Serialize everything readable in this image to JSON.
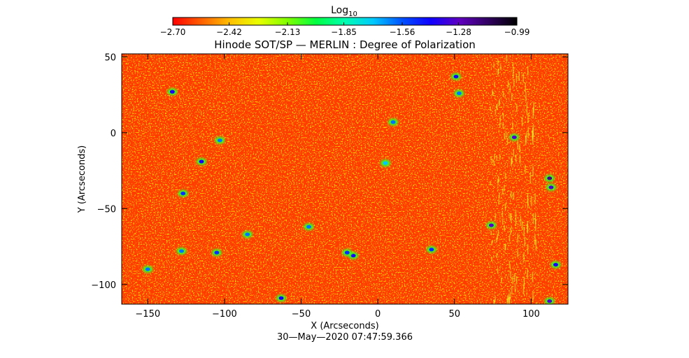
{
  "chart_data": {
    "type": "heatmap",
    "title": "Hinode SOT/SP — MERLIN : Degree of Polarization",
    "xlabel": "X (Arcseconds)",
    "ylabel": "Y (Arcseconds)",
    "timestamp": "30—May—2020 07:47:59.366",
    "xlim": [
      -167,
      124
    ],
    "ylim": [
      -113,
      52
    ],
    "x_ticks": [
      -150,
      -100,
      -50,
      0,
      50,
      100
    ],
    "x_tick_labels": [
      "−150",
      "−100",
      "−50",
      "0",
      "50",
      "100"
    ],
    "y_ticks": [
      50,
      0,
      -50,
      -100
    ],
    "y_tick_labels": [
      "50",
      "0",
      "−50",
      "−100"
    ],
    "colorbar": {
      "label_main": "Log",
      "label_sub": "10",
      "min": -2.7,
      "max": -0.99,
      "tick_values": [
        -2.7,
        -2.42,
        -2.13,
        -1.85,
        -1.56,
        -1.28,
        -0.99
      ],
      "tick_labels": [
        "−2.70",
        "−2.42",
        "−2.13",
        "−1.85",
        "−1.56",
        "−1.28",
        "−0.99"
      ],
      "colormap": [
        "#ff0000",
        "#ff6000",
        "#ffc000",
        "#e8ff00",
        "#80ff00",
        "#00ff40",
        "#00ffb0",
        "#00c8ff",
        "#0050ff",
        "#1000ff",
        "#6000c0",
        "#300060",
        "#000000"
      ]
    },
    "field": {
      "background_value": -2.62,
      "background_color": "#ff3c00",
      "bright_band": {
        "x_center": 88,
        "x_width": 30
      },
      "plage_features": [
        {
          "x": 89,
          "y": -3,
          "value": -1.3
        },
        {
          "x": 74,
          "y": -61,
          "value": -1.3
        },
        {
          "x": 112,
          "y": -30,
          "value": -1.2
        },
        {
          "x": 113,
          "y": -36,
          "value": -1.3
        },
        {
          "x": 116,
          "y": -87,
          "value": -1.4
        },
        {
          "x": 112,
          "y": -111,
          "value": -1.3
        },
        {
          "x": -16,
          "y": -81,
          "value": -1.4
        },
        {
          "x": -20,
          "y": -79,
          "value": -1.5
        },
        {
          "x": 51,
          "y": 37,
          "value": -1.4
        },
        {
          "x": 53,
          "y": 26,
          "value": -1.6
        },
        {
          "x": -134,
          "y": 27,
          "value": -1.4
        },
        {
          "x": -115,
          "y": -19,
          "value": -1.4
        },
        {
          "x": -127,
          "y": -40,
          "value": -1.5
        },
        {
          "x": -128,
          "y": -78,
          "value": -1.6
        },
        {
          "x": -105,
          "y": -79,
          "value": -1.5
        },
        {
          "x": -63,
          "y": -109,
          "value": -1.4
        },
        {
          "x": 10,
          "y": 7,
          "value": -1.6
        },
        {
          "x": 35,
          "y": -77,
          "value": -1.5
        },
        {
          "x": -103,
          "y": -5,
          "value": -1.6
        },
        {
          "x": -150,
          "y": -90,
          "value": -1.6
        },
        {
          "x": -85,
          "y": -67,
          "value": -1.6
        },
        {
          "x": 5,
          "y": -20,
          "value": -1.7
        },
        {
          "x": -45,
          "y": -62,
          "value": -1.6
        }
      ]
    }
  }
}
